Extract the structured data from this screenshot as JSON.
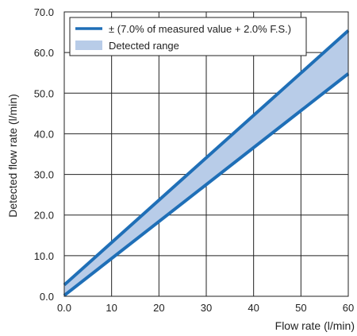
{
  "chart_data": {
    "type": "area",
    "title": "",
    "xlabel": "Flow rate (l/min)",
    "ylabel": "Detected flow rate (l/min)",
    "xlim": [
      0,
      60
    ],
    "ylim": [
      0,
      70
    ],
    "xticks": [
      0,
      10,
      20,
      30,
      40,
      50,
      60
    ],
    "xtick_labels": [
      "0.0",
      "10",
      "20",
      "30",
      "40",
      "50",
      "60"
    ],
    "yticks": [
      0,
      10,
      20,
      30,
      40,
      50,
      60,
      70
    ],
    "ytick_labels": [
      "0.0",
      "10.0",
      "20.0",
      "30.0",
      "40.0",
      "50.0",
      "60.0",
      "70.0"
    ],
    "grid": true,
    "legend_position": "top-left",
    "series": [
      {
        "name": "± (7.0% of measured value + 2.0% F.S.)",
        "kind": "line",
        "color": "#1f6fb7",
        "curves": [
          {
            "x": [
              0,
              60
            ],
            "y": [
              2.8,
              65.4
            ]
          },
          {
            "x": [
              0,
              60
            ],
            "y": [
              0.2,
              54.8
            ]
          }
        ]
      },
      {
        "name": "Detected range",
        "kind": "band",
        "color": "#b8cce8",
        "x": [
          0,
          60
        ],
        "upper": [
          2.8,
          65.4
        ],
        "lower": [
          0.2,
          54.8
        ]
      }
    ]
  }
}
